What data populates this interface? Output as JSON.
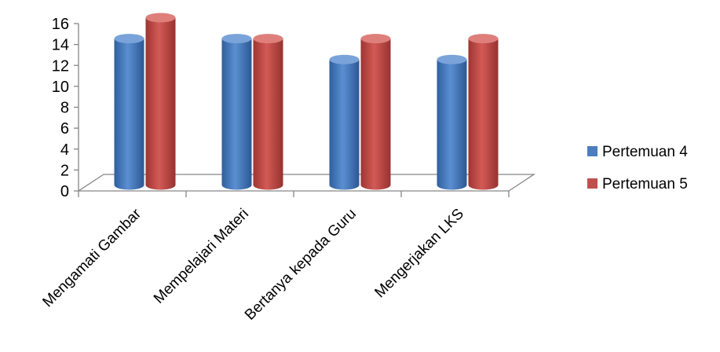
{
  "chart_data": {
    "type": "bar",
    "categories": [
      "Mengamati Gambar",
      "Mempelajari Materi",
      "Bertanya kepada Guru",
      "Mengerjakan LKS"
    ],
    "series": [
      {
        "name": "Pertemuan 4",
        "color": "#4a7ebf",
        "values": [
          14,
          14,
          12,
          12
        ]
      },
      {
        "name": "Pertemuan 5",
        "color": "#c0504d",
        "values": [
          16,
          14,
          14,
          14
        ]
      }
    ],
    "yticks": [
      0,
      2,
      4,
      6,
      8,
      10,
      12,
      14,
      16
    ],
    "ylim": [
      0,
      16
    ],
    "legend_position": "right"
  }
}
